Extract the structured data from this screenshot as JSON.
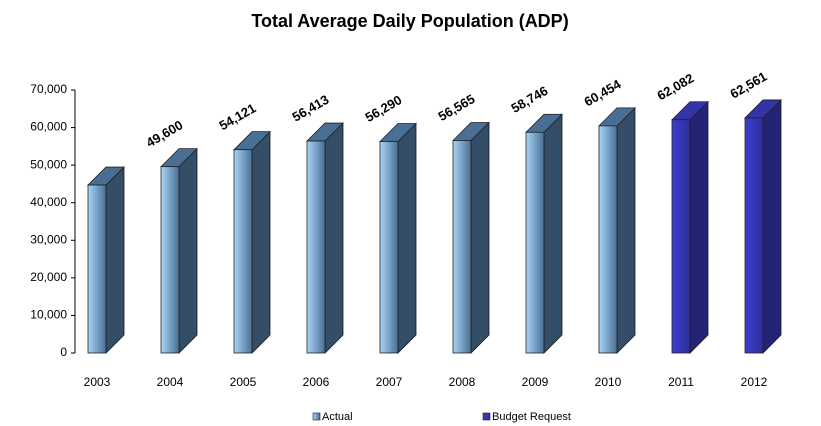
{
  "chart_data": {
    "type": "bar3d",
    "title": "Total Average Daily Population (ADP)",
    "categories": [
      "2003",
      "2004",
      "2005",
      "2006",
      "2007",
      "2008",
      "2009",
      "2010",
      "2011",
      "2012"
    ],
    "series": [
      {
        "name": "Actual",
        "color": "#4a6f94",
        "values": [
          44700,
          49600,
          54121,
          56413,
          56290,
          56565,
          58746,
          60454,
          null,
          null
        ],
        "value_labels": [
          null,
          "49,600",
          "54,121",
          "56,413",
          "56,290",
          "56,565",
          "58,746",
          "60,454",
          null,
          null
        ]
      },
      {
        "name": "Budget Request",
        "color": "#3333aa",
        "values": [
          null,
          null,
          null,
          null,
          null,
          null,
          null,
          null,
          62082,
          62561
        ],
        "value_labels": [
          null,
          null,
          null,
          null,
          null,
          null,
          null,
          null,
          "62,082",
          "62,561"
        ]
      }
    ],
    "ylim": [
      0,
      70000
    ],
    "yticks": [
      0,
      {
        "value": 10000,
        "label": "10,000"
      },
      {
        "value": 20000,
        "label": "20,000"
      },
      {
        "value": 30000,
        "label": "30,000"
      },
      {
        "value": 40000,
        "label": "40,000"
      },
      {
        "value": 50000,
        "label": "50,000"
      },
      {
        "value": 60000,
        "label": "60,000"
      },
      {
        "value": 70000,
        "label": "70,000"
      }
    ],
    "legend": "bottom"
  }
}
